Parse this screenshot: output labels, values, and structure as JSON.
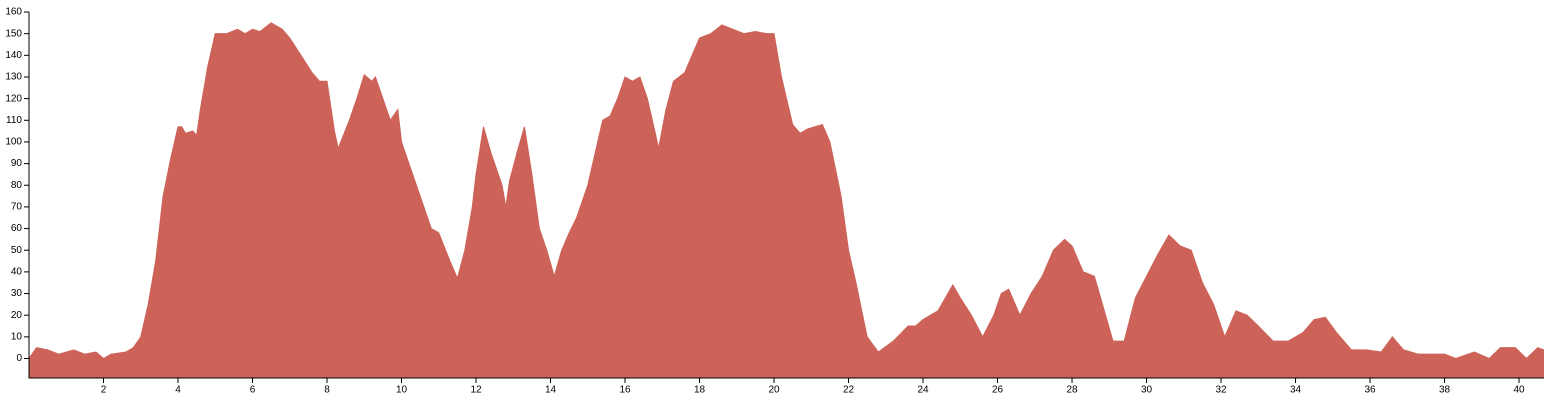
{
  "chart_data": {
    "type": "area",
    "color": "#cd6358",
    "x": [
      0,
      0.2,
      0.5,
      0.8,
      1.2,
      1.5,
      1.8,
      2.0,
      2.2,
      2.6,
      2.8,
      3.0,
      3.2,
      3.4,
      3.6,
      3.8,
      4.0,
      4.1,
      4.2,
      4.4,
      4.5,
      4.6,
      4.8,
      5.0,
      5.3,
      5.6,
      5.8,
      6.0,
      6.2,
      6.5,
      6.8,
      7.0,
      7.3,
      7.6,
      7.8,
      8.0,
      8.2,
      8.3,
      8.6,
      8.8,
      9.0,
      9.2,
      9.3,
      9.5,
      9.7,
      9.9,
      10.0,
      10.3,
      10.6,
      10.8,
      11.0,
      11.3,
      11.5,
      11.7,
      11.9,
      12.0,
      12.2,
      12.4,
      12.7,
      12.8,
      12.9,
      13.1,
      13.3,
      13.5,
      13.7,
      13.9,
      14.1,
      14.3,
      14.5,
      14.7,
      15.0,
      15.2,
      15.4,
      15.6,
      15.8,
      16.0,
      16.2,
      16.4,
      16.6,
      16.8,
      16.9,
      17.1,
      17.3,
      17.6,
      17.8,
      18.0,
      18.3,
      18.6,
      18.9,
      19.2,
      19.5,
      19.8,
      20.0,
      20.2,
      20.5,
      20.7,
      20.9,
      21.1,
      21.3,
      21.5,
      21.8,
      22.0,
      22.2,
      22.5,
      22.8,
      23.2,
      23.6,
      23.8,
      24.0,
      24.4,
      24.6,
      24.8,
      25.0,
      25.3,
      25.6,
      25.9,
      26.1,
      26.3,
      26.6,
      26.9,
      27.2,
      27.5,
      27.8,
      28.0,
      28.3,
      28.6,
      28.9,
      29.1,
      29.4,
      29.7,
      30.0,
      30.3,
      30.6,
      30.9,
      31.2,
      31.5,
      31.8,
      32.1,
      32.4,
      32.7,
      33.0,
      33.4,
      33.8,
      34.2,
      34.5,
      34.8,
      35.1,
      35.5,
      35.9,
      36.3,
      36.6,
      36.9,
      37.3,
      38.0,
      38.3,
      38.8,
      39.2,
      39.5,
      39.9,
      40.2,
      40.5,
      40.67
    ],
    "y": [
      0,
      5,
      4,
      2,
      4,
      2,
      3,
      0,
      2,
      3,
      5,
      10,
      25,
      45,
      75,
      92,
      107,
      107,
      104,
      105,
      103,
      115,
      135,
      150,
      150,
      152,
      150,
      152,
      151,
      155,
      152,
      148,
      140,
      132,
      128,
      128,
      105,
      97,
      110,
      120,
      131,
      128,
      130,
      120,
      110,
      115,
      100,
      85,
      70,
      60,
      58,
      45,
      37,
      50,
      70,
      85,
      107,
      95,
      80,
      70,
      82,
      95,
      107,
      85,
      60,
      50,
      38,
      50,
      58,
      65,
      80,
      95,
      110,
      112,
      120,
      130,
      128,
      130,
      120,
      105,
      97,
      115,
      128,
      132,
      140,
      148,
      150,
      154,
      152,
      150,
      151,
      150,
      150,
      130,
      108,
      104,
      106,
      107,
      108,
      100,
      75,
      50,
      35,
      10,
      3,
      8,
      15,
      15,
      18,
      22,
      28,
      34,
      28,
      20,
      10,
      20,
      30,
      32,
      20,
      30,
      38,
      50,
      55,
      52,
      40,
      38,
      20,
      8,
      8,
      28,
      38,
      48,
      57,
      52,
      50,
      35,
      25,
      10,
      22,
      20,
      15,
      8,
      8,
      12,
      18,
      19,
      12,
      4,
      4,
      3,
      10,
      4,
      2,
      2,
      0,
      3,
      0,
      5,
      5,
      0,
      5,
      4
    ],
    "xlim": [
      0,
      40.67
    ],
    "ylim": [
      -9,
      160
    ],
    "xticks": [
      2,
      4,
      6,
      8,
      10,
      12,
      14,
      16,
      18,
      20,
      22,
      24,
      26,
      28,
      30,
      32,
      34,
      36,
      38,
      40
    ],
    "yticks": [
      0,
      10,
      20,
      30,
      40,
      50,
      60,
      70,
      80,
      90,
      100,
      110,
      120,
      130,
      140,
      150,
      160
    ]
  }
}
